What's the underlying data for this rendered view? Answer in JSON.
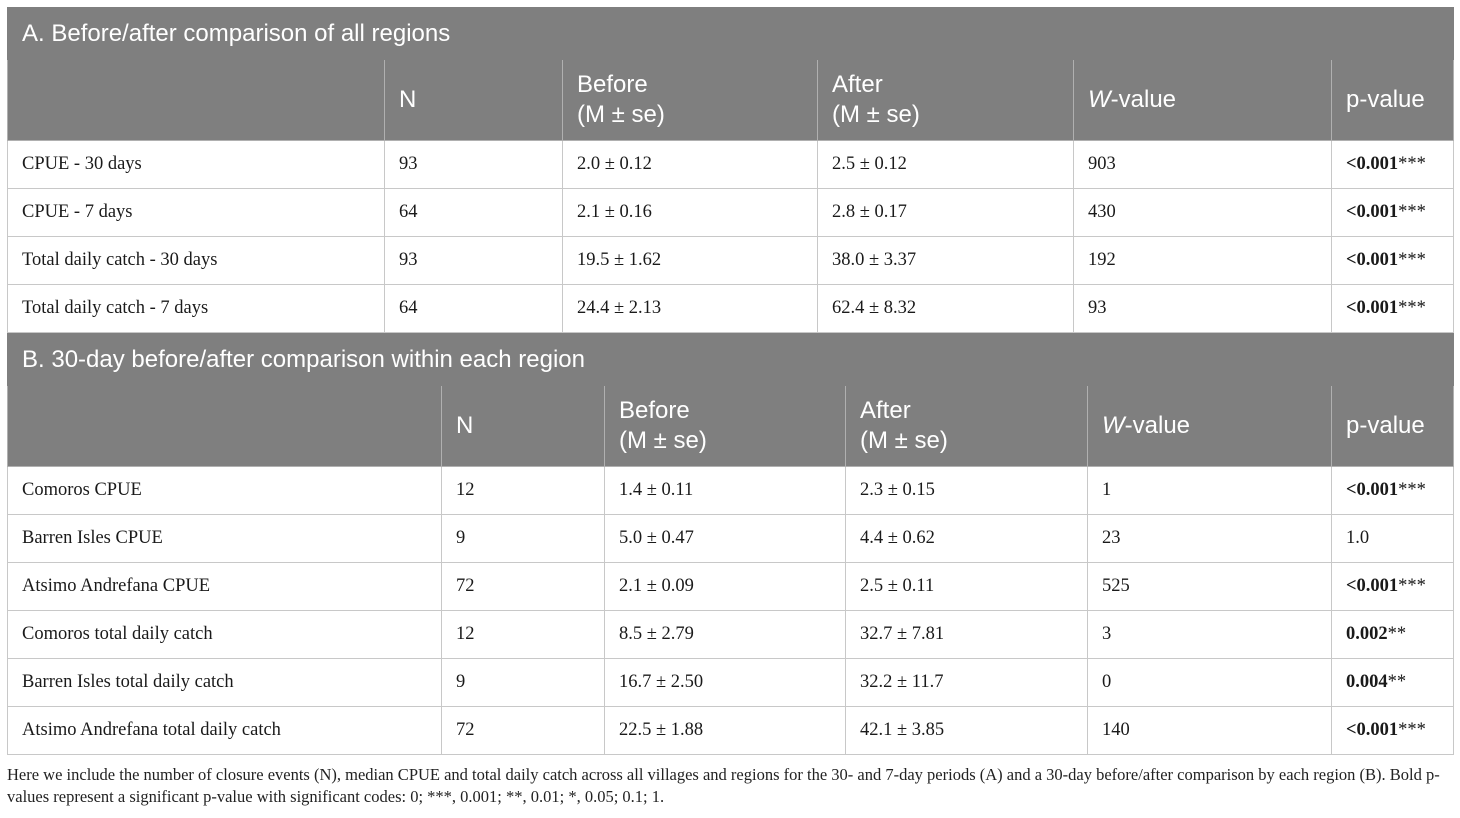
{
  "section_a": {
    "title": "A. Before/after comparison of all regions",
    "headers": {
      "n": "N",
      "before_1": "Before",
      "before_2": "(M ± se)",
      "after_1": "After",
      "after_2": "(M ± se)",
      "w_italic": "W",
      "w_rest": "-value",
      "p": "p-value"
    },
    "rows": [
      {
        "label": "CPUE - 30 days",
        "n": "93",
        "before": "2.0 ± 0.12",
        "after": "2.5 ± 0.12",
        "w": "903",
        "p": "<0.001",
        "stars": "***"
      },
      {
        "label": "CPUE - 7 days",
        "n": "64",
        "before": "2.1 ± 0.16",
        "after": "2.8 ± 0.17",
        "w": "430",
        "p": "<0.001",
        "stars": "***"
      },
      {
        "label": "Total daily catch - 30 days",
        "n": "93",
        "before": "19.5 ± 1.62",
        "after": "38.0 ± 3.37",
        "w": "192",
        "p": "<0.001",
        "stars": "***"
      },
      {
        "label": "Total daily catch - 7 days",
        "n": "64",
        "before": "24.4 ± 2.13",
        "after": "62.4 ± 8.32",
        "w": "93",
        "p": "<0.001",
        "stars": "***"
      }
    ]
  },
  "section_b": {
    "title": "B. 30-day before/after comparison within each region",
    "headers": {
      "n": "N",
      "before_1": "Before",
      "before_2": "(M ± se)",
      "after_1": "After",
      "after_2": "(M ± se)",
      "w_italic": "W",
      "w_rest": "-value",
      "p": "p-value"
    },
    "rows": [
      {
        "label": "Comoros CPUE",
        "n": "12",
        "before": "1.4 ± 0.11",
        "after": "2.3 ± 0.15",
        "w": "1",
        "p": "<0.001",
        "stars": "***"
      },
      {
        "label": "Barren Isles CPUE",
        "n": "9",
        "before": "5.0 ± 0.47",
        "after": "4.4 ± 0.62",
        "w": "23",
        "p": "1.0",
        "stars": ""
      },
      {
        "label": "Atsimo Andrefana CPUE",
        "n": "72",
        "before": "2.1 ± 0.09",
        "after": "2.5 ± 0.11",
        "w": "525",
        "p": "<0.001",
        "stars": "***"
      },
      {
        "label": "Comoros total daily catch",
        "n": "12",
        "before": "8.5 ± 2.79",
        "after": "32.7 ± 7.81",
        "w": "3",
        "p": "0.002",
        "stars": "**"
      },
      {
        "label": "Barren Isles total daily catch",
        "n": "9",
        "before": "16.7 ± 2.50",
        "after": "32.2 ± 11.7",
        "w": "0",
        "p": "0.004",
        "stars": "**"
      },
      {
        "label": "Atsimo Andrefana total daily catch",
        "n": "72",
        "before": "22.5 ± 1.88",
        "after": "42.1 ± 3.85",
        "w": "140",
        "p": "<0.001",
        "stars": "***"
      }
    ]
  },
  "caption": "Here we include the number of closure events (N), median CPUE and total daily catch across all villages and regions for the 30- and 7-day periods (A) and a 30-day before/after comparison by each region (B). Bold p-values represent a significant p-value with significant codes: 0; ***, 0.001; **, 0.01; *, 0.05; 0.1; 1."
}
